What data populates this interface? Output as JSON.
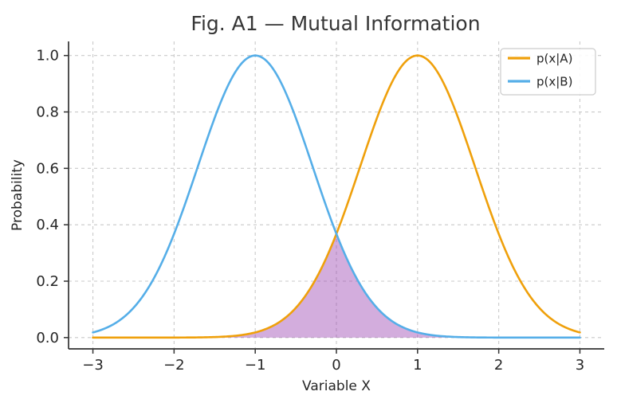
{
  "figure": {
    "background": "#ffffff",
    "text_color": "#262626",
    "spine_color": "#333333"
  },
  "chart_data": {
    "type": "line",
    "title": "Fig. A1 — Mutual Information",
    "xlabel": "Variable X",
    "ylabel": "Probability",
    "xlim": [
      -3.3,
      3.3
    ],
    "ylim": [
      -0.04,
      1.05
    ],
    "xticks": [
      -3,
      -2,
      -1,
      0,
      1,
      2,
      3
    ],
    "xtick_labels": [
      "−3",
      "−2",
      "−1",
      "0",
      "1",
      "2",
      "3"
    ],
    "yticks": [
      0.0,
      0.2,
      0.4,
      0.6,
      0.8,
      1.0
    ],
    "ytick_labels": [
      "0.0",
      "0.2",
      "0.4",
      "0.6",
      "0.8",
      "1.0"
    ],
    "grid": {
      "visible": true,
      "linestyle": "dashed",
      "color": "#c9c9c9"
    },
    "series": [
      {
        "name": "p(x|A)",
        "shape": "gaussian",
        "mean": 1.0,
        "sigma": 0.707,
        "peak": 1.0,
        "x_range": [
          -3,
          3
        ],
        "color": "#EFA00B"
      },
      {
        "name": "p(x|B)",
        "shape": "gaussian",
        "mean": -1.0,
        "sigma": 0.707,
        "peak": 1.0,
        "x_range": [
          -3,
          3
        ],
        "color": "#55AEE8"
      }
    ],
    "overlap": {
      "rule": "min(p(x|A), p(x|B)) filled to y=0",
      "fill_color": "rgba(150,60,175,0.42)",
      "intersection_point": {
        "x": 0,
        "y": 0.37
      }
    },
    "legend": {
      "position": "upper right",
      "entries": [
        {
          "label": "p(x|A)",
          "color": "#EFA00B"
        },
        {
          "label": "p(x|B)",
          "color": "#55AEE8"
        }
      ]
    }
  }
}
